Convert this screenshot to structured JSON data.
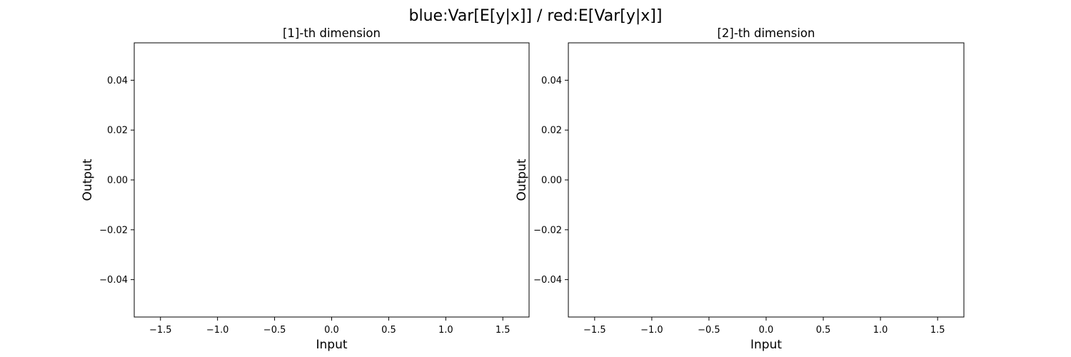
{
  "figure": {
    "suptitle": "blue:Var[E[y|x]] / red:E[Var[y|x]]"
  },
  "chart_data": [
    {
      "type": "line",
      "title": "[1]-th dimension",
      "xlabel": "Input",
      "ylabel": "Output",
      "xlim": [
        -1.73,
        1.73
      ],
      "ylim": [
        -0.055,
        0.055
      ],
      "xticks": [
        -1.5,
        -1.0,
        -0.5,
        0.0,
        0.5,
        1.0,
        1.5
      ],
      "xtick_labels": [
        "−1.5",
        "−1.0",
        "−0.5",
        "0.0",
        "0.5",
        "1.0",
        "1.5"
      ],
      "yticks": [
        0.04,
        0.02,
        0.0,
        -0.02,
        -0.04
      ],
      "ytick_labels": [
        "0.04",
        "0.02",
        "0.00",
        "−0.02",
        "−0.04"
      ],
      "grid": false,
      "series": [
        {
          "color": "#1f77b4",
          "x": [],
          "y": []
        },
        {
          "color": "#d62728",
          "x": [],
          "y": []
        }
      ]
    },
    {
      "type": "line",
      "title": "[2]-th dimension",
      "xlabel": "Input",
      "ylabel": "Output",
      "xlim": [
        -1.73,
        1.73
      ],
      "ylim": [
        -0.055,
        0.055
      ],
      "xticks": [
        -1.5,
        -1.0,
        -0.5,
        0.0,
        0.5,
        1.0,
        1.5
      ],
      "xtick_labels": [
        "−1.5",
        "−1.0",
        "−0.5",
        "0.0",
        "0.5",
        "1.0",
        "1.5"
      ],
      "yticks": [
        0.04,
        0.02,
        0.0,
        -0.02,
        -0.04
      ],
      "ytick_labels": [
        "0.04",
        "0.02",
        "0.00",
        "−0.02",
        "−0.04"
      ],
      "grid": false,
      "series": [
        {
          "color": "#1f77b4",
          "x": [],
          "y": []
        },
        {
          "color": "#d62728",
          "x": [],
          "y": []
        }
      ]
    }
  ]
}
